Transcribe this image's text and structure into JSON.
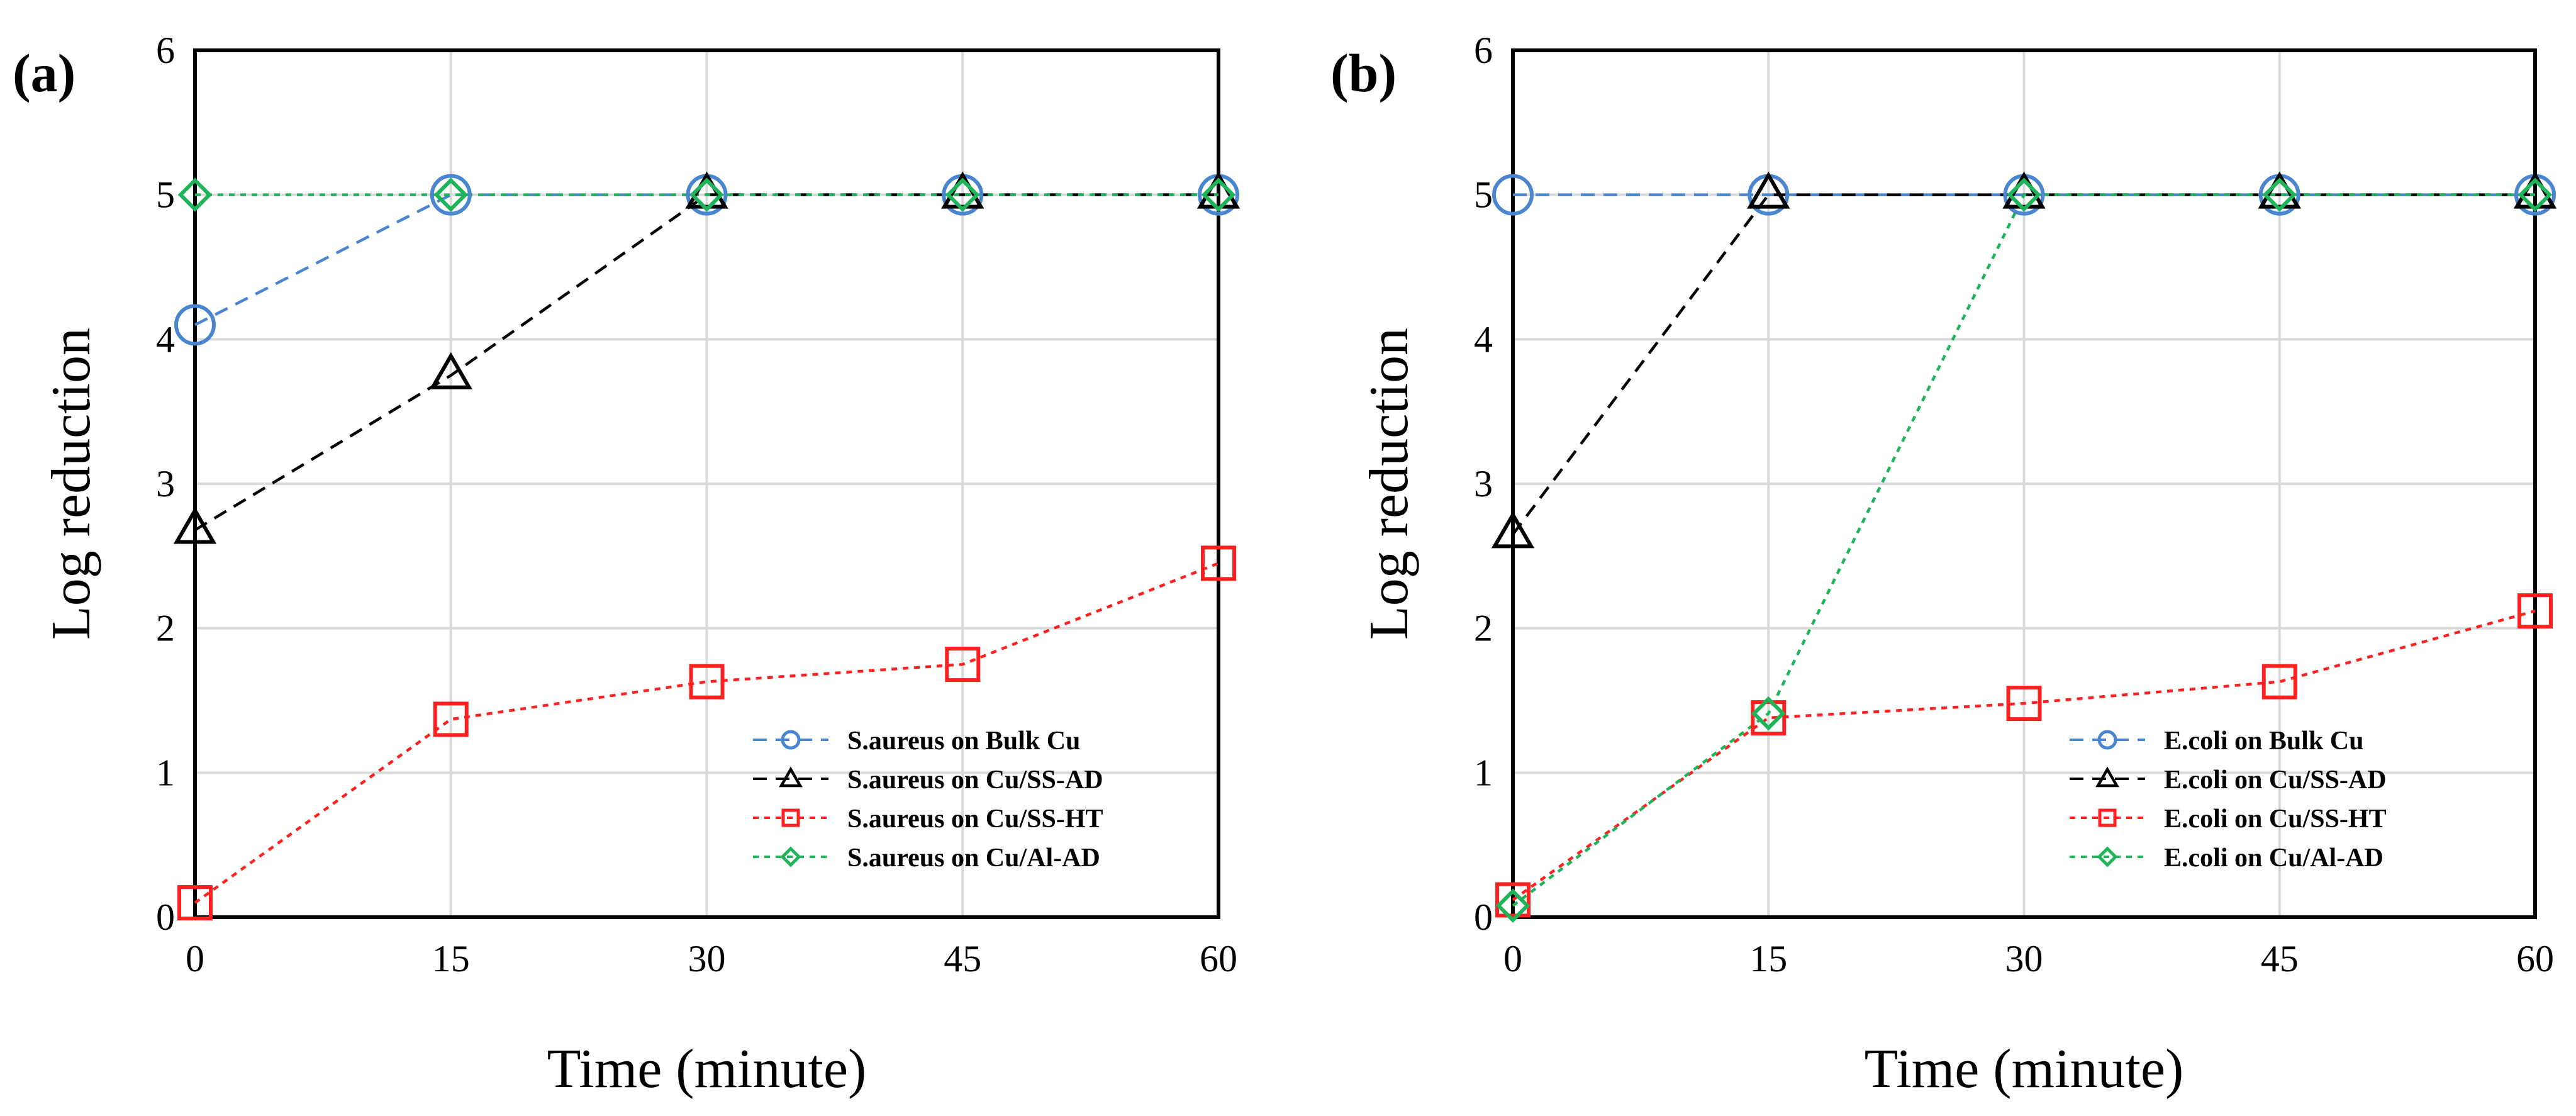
{
  "colors": {
    "bulk_cu": "#4A86D0",
    "cu_ss_ad": "#000000",
    "cu_ss_ht": "#FF2020",
    "cu_al_ad": "#1FB35A",
    "grid": "#D9D9D9",
    "axis": "#000000"
  },
  "chart_data": [
    {
      "type": "line",
      "panel_label": "(a)",
      "xlabel": "Time (minute)",
      "ylabel": "Log reduction",
      "x": [
        0,
        15,
        30,
        45,
        60
      ],
      "xticks": [
        "0",
        "15",
        "30",
        "45",
        "60"
      ],
      "yticks": [
        "0",
        "1",
        "2",
        "3",
        "4",
        "5",
        "6"
      ],
      "xlim": [
        0,
        60
      ],
      "ylim": [
        0,
        6
      ],
      "grid": true,
      "legend_position": "bottom-right",
      "series": [
        {
          "name": "S.aureus on Bulk Cu",
          "marker": "circle",
          "line": "dashed",
          "color": "#4A86D0",
          "values": [
            4.1,
            5.0,
            5.0,
            5.0,
            5.0
          ]
        },
        {
          "name": "S.aureus on Cu/SS-AD",
          "marker": "triangle",
          "line": "dashed",
          "color": "#000000",
          "values": [
            2.68,
            3.75,
            5.0,
            5.0,
            5.0
          ]
        },
        {
          "name": "S.aureus on Cu/SS-HT",
          "marker": "square",
          "line": "dotted",
          "color": "#FF2020",
          "values": [
            0.1,
            1.37,
            1.63,
            1.75,
            2.45
          ]
        },
        {
          "name": "S.aureus on Cu/Al-AD",
          "marker": "diamond",
          "line": "dotted",
          "color": "#1FB35A",
          "values": [
            5.0,
            5.0,
            5.0,
            5.0,
            5.0
          ]
        }
      ]
    },
    {
      "type": "line",
      "panel_label": "(b)",
      "xlabel": "Time (minute)",
      "ylabel": "Log reduction",
      "x": [
        0,
        15,
        30,
        45,
        60
      ],
      "xticks": [
        "0",
        "15",
        "30",
        "45",
        "60"
      ],
      "yticks": [
        "0",
        "1",
        "2",
        "3",
        "4",
        "5",
        "6"
      ],
      "xlim": [
        0,
        60
      ],
      "ylim": [
        0,
        6
      ],
      "grid": true,
      "legend_position": "bottom-right",
      "series": [
        {
          "name": "E.coli on Bulk Cu",
          "marker": "circle",
          "line": "dashed",
          "color": "#4A86D0",
          "values": [
            5.0,
            5.0,
            5.0,
            5.0,
            5.0
          ]
        },
        {
          "name": "E.coli on Cu/SS-AD",
          "marker": "triangle",
          "line": "dashed",
          "color": "#000000",
          "values": [
            2.65,
            5.0,
            5.0,
            5.0,
            5.0
          ]
        },
        {
          "name": "E.coli on Cu/SS-HT",
          "marker": "square",
          "line": "dotted",
          "color": "#FF2020",
          "values": [
            0.12,
            1.38,
            1.48,
            1.63,
            2.12
          ]
        },
        {
          "name": "E.coli on Cu/Al-AD",
          "marker": "diamond",
          "line": "dotted",
          "color": "#1FB35A",
          "values": [
            0.08,
            1.41,
            5.0,
            5.0,
            5.0
          ]
        }
      ]
    }
  ]
}
